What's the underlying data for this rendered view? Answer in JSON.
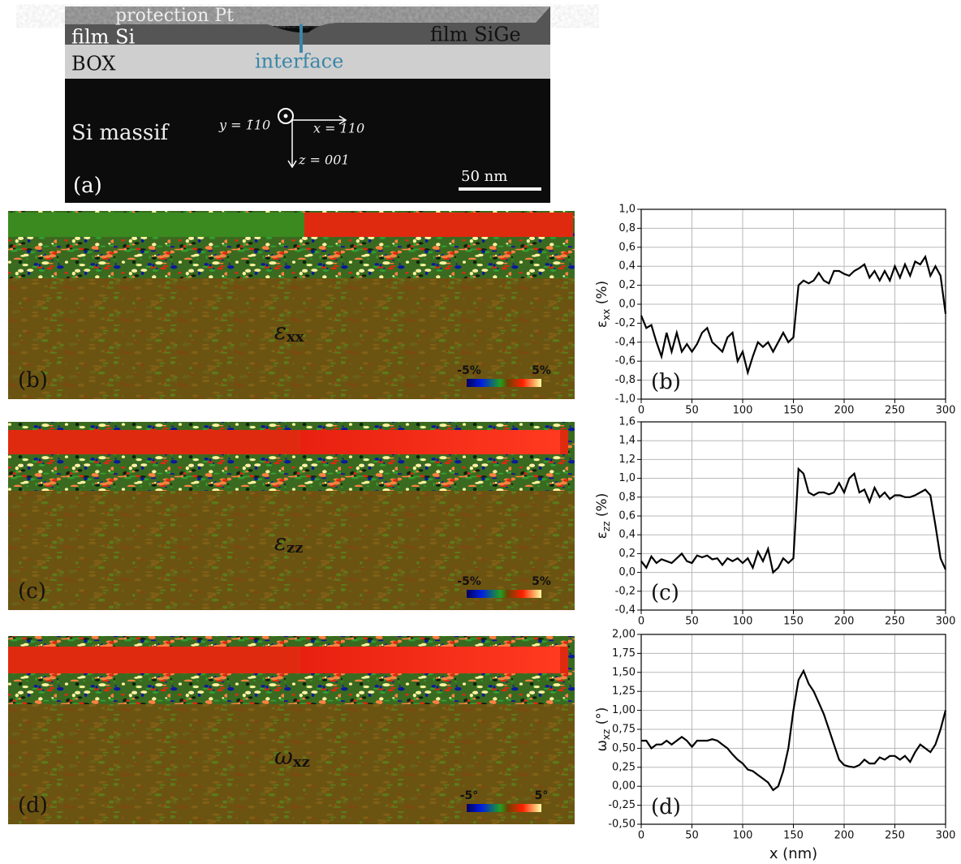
{
  "figure": {
    "tem": {
      "pt": "protection Pt",
      "film_si": "film Si",
      "film_sige": "film SiGe",
      "box": "BOX",
      "interface": "interface",
      "substrate": "Si massif",
      "y_axis": "y = 1̄10",
      "x_axis": "x = 110",
      "z_axis": "z = 001",
      "scale": "50 nm",
      "panel": "(a)"
    },
    "maps": [
      {
        "symbol": "ε",
        "sub": "xx",
        "min_label": "-5%",
        "max_label": "5%",
        "panel": "(b)"
      },
      {
        "symbol": "ε",
        "sub": "zz",
        "min_label": "-5%",
        "max_label": "5%",
        "panel": "(c)"
      },
      {
        "symbol": "ω",
        "sub": "xz",
        "min_label": "-5°",
        "max_label": "5°",
        "panel": "(d)"
      }
    ]
  },
  "chart_data": [
    {
      "type": "line",
      "color": "#000000",
      "grid": true,
      "annotation": "(b)",
      "ylabel_symbol": "ε",
      "ylabel_sub": "xx",
      "ylabel_unit": " (%)",
      "x": [
        0,
        5,
        10,
        15,
        20,
        25,
        30,
        35,
        40,
        45,
        50,
        55,
        60,
        65,
        70,
        75,
        80,
        85,
        90,
        95,
        100,
        105,
        110,
        115,
        120,
        125,
        130,
        135,
        140,
        145,
        150,
        155,
        160,
        165,
        170,
        175,
        180,
        185,
        190,
        195,
        200,
        205,
        210,
        215,
        220,
        225,
        230,
        235,
        240,
        245,
        250,
        255,
        260,
        265,
        270,
        275,
        280,
        285,
        290,
        295,
        300
      ],
      "values": [
        -0.12,
        -0.25,
        -0.22,
        -0.4,
        -0.55,
        -0.3,
        -0.5,
        -0.3,
        -0.5,
        -0.42,
        -0.5,
        -0.42,
        -0.3,
        -0.25,
        -0.4,
        -0.45,
        -0.5,
        -0.35,
        -0.3,
        -0.6,
        -0.5,
        -0.72,
        -0.55,
        -0.4,
        -0.45,
        -0.4,
        -0.5,
        -0.4,
        -0.3,
        -0.4,
        -0.35,
        0.2,
        0.25,
        0.22,
        0.25,
        0.33,
        0.25,
        0.22,
        0.35,
        0.35,
        0.32,
        0.3,
        0.35,
        0.38,
        0.42,
        0.28,
        0.35,
        0.25,
        0.35,
        0.25,
        0.4,
        0.28,
        0.42,
        0.3,
        0.45,
        0.42,
        0.5,
        0.3,
        0.4,
        0.3,
        -0.1
      ],
      "xlim": [
        0,
        300
      ],
      "xticks": [
        0,
        50,
        100,
        150,
        200,
        250,
        300
      ],
      "ylim": [
        -1.0,
        1.0
      ],
      "yticks": [
        {
          "value": -1.0,
          "label": "-1,0"
        },
        {
          "value": -0.8,
          "label": "-0,8"
        },
        {
          "value": -0.6,
          "label": "-0,6"
        },
        {
          "value": -0.4,
          "label": "-0,4"
        },
        {
          "value": -0.2,
          "label": "-0,2"
        },
        {
          "value": 0.0,
          "label": "0,0"
        },
        {
          "value": 0.2,
          "label": "0,2"
        },
        {
          "value": 0.4,
          "label": "0,4"
        },
        {
          "value": 0.6,
          "label": "0,6"
        },
        {
          "value": 0.8,
          "label": "0,8"
        },
        {
          "value": 1.0,
          "label": "1,0"
        }
      ]
    },
    {
      "type": "line",
      "color": "#000000",
      "grid": true,
      "annotation": "(c)",
      "ylabel_symbol": "ε",
      "ylabel_sub": "zz",
      "ylabel_unit": " (%)",
      "x": [
        0,
        5,
        10,
        15,
        20,
        25,
        30,
        35,
        40,
        45,
        50,
        55,
        60,
        65,
        70,
        75,
        80,
        85,
        90,
        95,
        100,
        105,
        110,
        115,
        120,
        125,
        130,
        135,
        140,
        145,
        150,
        155,
        160,
        165,
        170,
        175,
        180,
        185,
        190,
        195,
        200,
        205,
        210,
        215,
        220,
        225,
        230,
        235,
        240,
        245,
        250,
        255,
        260,
        265,
        270,
        275,
        280,
        285,
        290,
        295,
        300
      ],
      "values": [
        0.12,
        0.05,
        0.17,
        0.1,
        0.14,
        0.12,
        0.1,
        0.15,
        0.2,
        0.12,
        0.1,
        0.18,
        0.16,
        0.18,
        0.14,
        0.15,
        0.08,
        0.15,
        0.12,
        0.15,
        0.1,
        0.15,
        0.05,
        0.22,
        0.12,
        0.25,
        0.0,
        0.05,
        0.15,
        0.1,
        0.15,
        1.1,
        1.05,
        0.85,
        0.82,
        0.85,
        0.85,
        0.83,
        0.85,
        0.95,
        0.85,
        1.0,
        1.05,
        0.85,
        0.88,
        0.75,
        0.9,
        0.8,
        0.85,
        0.78,
        0.82,
        0.82,
        0.8,
        0.8,
        0.82,
        0.85,
        0.88,
        0.82,
        0.5,
        0.15,
        0.03
      ],
      "xlim": [
        0,
        300
      ],
      "xticks": [
        0,
        50,
        100,
        150,
        200,
        250,
        300
      ],
      "ylim": [
        -0.4,
        1.6
      ],
      "yticks": [
        {
          "value": -0.4,
          "label": "-0,4"
        },
        {
          "value": -0.2,
          "label": "-0,2"
        },
        {
          "value": 0.0,
          "label": "0,0"
        },
        {
          "value": 0.2,
          "label": "0,2"
        },
        {
          "value": 0.4,
          "label": "0,4"
        },
        {
          "value": 0.6,
          "label": "0,6"
        },
        {
          "value": 0.8,
          "label": "0,8"
        },
        {
          "value": 1.0,
          "label": "1,0"
        },
        {
          "value": 1.2,
          "label": "1,2"
        },
        {
          "value": 1.4,
          "label": "1,4"
        },
        {
          "value": 1.6,
          "label": "1,6"
        }
      ]
    },
    {
      "type": "line",
      "color": "#000000",
      "grid": true,
      "annotation": "(d)",
      "xlabel": "x (nm)",
      "ylabel_symbol": "ω",
      "ylabel_sub": "xz",
      "ylabel_unit": " (°)",
      "x": [
        0,
        5,
        10,
        15,
        20,
        25,
        30,
        35,
        40,
        45,
        50,
        55,
        60,
        65,
        70,
        75,
        80,
        85,
        90,
        95,
        100,
        105,
        110,
        115,
        120,
        125,
        130,
        135,
        140,
        145,
        150,
        155,
        160,
        165,
        170,
        175,
        180,
        185,
        190,
        195,
        200,
        205,
        210,
        215,
        220,
        225,
        230,
        235,
        240,
        245,
        250,
        255,
        260,
        265,
        270,
        275,
        280,
        285,
        290,
        295,
        300
      ],
      "values": [
        0.6,
        0.6,
        0.5,
        0.55,
        0.55,
        0.6,
        0.55,
        0.6,
        0.65,
        0.6,
        0.52,
        0.6,
        0.6,
        0.6,
        0.62,
        0.6,
        0.55,
        0.5,
        0.42,
        0.35,
        0.3,
        0.22,
        0.2,
        0.15,
        0.1,
        0.05,
        -0.05,
        0.0,
        0.2,
        0.5,
        1.0,
        1.4,
        1.52,
        1.35,
        1.25,
        1.1,
        0.95,
        0.75,
        0.55,
        0.35,
        0.28,
        0.26,
        0.25,
        0.28,
        0.35,
        0.3,
        0.3,
        0.38,
        0.35,
        0.4,
        0.4,
        0.35,
        0.4,
        0.32,
        0.45,
        0.55,
        0.5,
        0.45,
        0.55,
        0.75,
        1.0
      ],
      "xlim": [
        0,
        300
      ],
      "xticks": [
        0,
        50,
        100,
        150,
        200,
        250,
        300
      ],
      "ylim": [
        -0.5,
        2.0
      ],
      "yticks": [
        {
          "value": -0.5,
          "label": "-0,50"
        },
        {
          "value": -0.25,
          "label": "-0,25"
        },
        {
          "value": 0.0,
          "label": "0,00"
        },
        {
          "value": 0.25,
          "label": "0,25"
        },
        {
          "value": 0.5,
          "label": "0,50"
        },
        {
          "value": 0.75,
          "label": "0,75"
        },
        {
          "value": 1.0,
          "label": "1,00"
        },
        {
          "value": 1.25,
          "label": "1,25"
        },
        {
          "value": 1.5,
          "label": "1,50"
        },
        {
          "value": 1.75,
          "label": "1,75"
        },
        {
          "value": 2.0,
          "label": "2,00"
        }
      ]
    }
  ]
}
